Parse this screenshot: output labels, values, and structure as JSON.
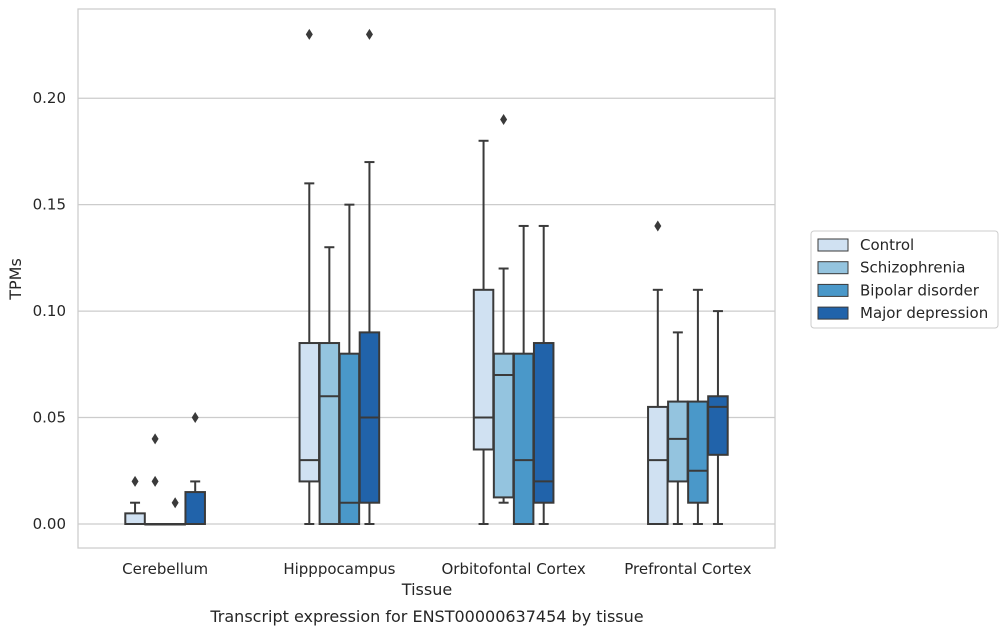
{
  "chart_data": {
    "type": "box",
    "title": "",
    "caption": "Transcript expression for ENST00000637454 by tissue",
    "xlabel": "Tissue",
    "ylabel": "TPMs",
    "ylim": [
      -0.011,
      0.242
    ],
    "yticks": [
      "0.00",
      "0.05",
      "0.10",
      "0.15",
      "0.20"
    ],
    "grid": "horizontal",
    "legend_position": "right",
    "categories": [
      "Cerebellum",
      "Hipppocampus",
      "Orbitofontal Cortex",
      "Prefrontal Cortex"
    ],
    "series": [
      {
        "name": "Control",
        "color": "#d0e1f2",
        "boxes": [
          {
            "min": 0,
            "q1": 0,
            "median": 0,
            "q3": 0.005,
            "max": 0.01,
            "outliers": [
              0.02
            ]
          },
          {
            "min": 0,
            "q1": 0.02,
            "median": 0.03,
            "q3": 0.085,
            "max": 0.16,
            "outliers": [
              0.23
            ]
          },
          {
            "min": 0,
            "q1": 0.035,
            "median": 0.05,
            "q3": 0.11,
            "max": 0.18,
            "outliers": []
          },
          {
            "min": 0,
            "q1": 0,
            "median": 0.03,
            "q3": 0.055,
            "max": 0.11,
            "outliers": [
              0.14
            ]
          }
        ]
      },
      {
        "name": "Schizophrenia",
        "color": "#94c4df",
        "boxes": [
          {
            "min": 0,
            "q1": 0,
            "median": 0,
            "q3": 0,
            "max": 0,
            "outliers": [
              0.02,
              0.04
            ]
          },
          {
            "min": 0,
            "q1": 0,
            "median": 0.06,
            "q3": 0.085,
            "max": 0.13,
            "outliers": []
          },
          {
            "min": 0.01,
            "q1": 0.0125,
            "median": 0.07,
            "q3": 0.08,
            "max": 0.12,
            "outliers": [
              0.19
            ]
          },
          {
            "min": 0,
            "q1": 0.02,
            "median": 0.04,
            "q3": 0.0575,
            "max": 0.09,
            "outliers": []
          }
        ]
      },
      {
        "name": "Bipolar disorder",
        "color": "#4a98c9",
        "boxes": [
          {
            "min": 0,
            "q1": 0,
            "median": 0,
            "q3": 0,
            "max": 0,
            "outliers": [
              0.01
            ]
          },
          {
            "min": 0,
            "q1": 0,
            "median": 0.01,
            "q3": 0.08,
            "max": 0.15,
            "outliers": []
          },
          {
            "min": 0,
            "q1": 0,
            "median": 0.03,
            "q3": 0.08,
            "max": 0.14,
            "outliers": []
          },
          {
            "min": 0,
            "q1": 0.01,
            "median": 0.025,
            "q3": 0.0575,
            "max": 0.11,
            "outliers": []
          }
        ]
      },
      {
        "name": "Major depression",
        "color": "#2163aa",
        "boxes": [
          {
            "min": 0,
            "q1": 0,
            "median": 0,
            "q3": 0.015,
            "max": 0.02,
            "outliers": [
              0.05
            ]
          },
          {
            "min": 0,
            "q1": 0.01,
            "median": 0.05,
            "q3": 0.09,
            "max": 0.17,
            "outliers": [
              0.23
            ]
          },
          {
            "min": 0,
            "q1": 0.01,
            "median": 0.02,
            "q3": 0.085,
            "max": 0.14,
            "outliers": []
          },
          {
            "min": 0,
            "q1": 0.0325,
            "median": 0.055,
            "q3": 0.06,
            "max": 0.1,
            "outliers": []
          }
        ]
      }
    ]
  }
}
